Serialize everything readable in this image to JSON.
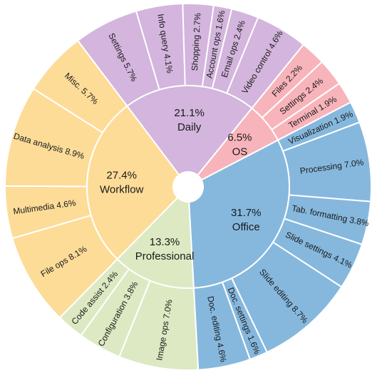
{
  "chart_data": {
    "type": "sunburst",
    "title": "",
    "categories": [
      {
        "name": "Office",
        "value": 31.7,
        "value_label": "31.7%",
        "color": "#86B8DE",
        "children": [
          {
            "name": "Visualization",
            "value": 1.9,
            "label": "Visualization 1.9%"
          },
          {
            "name": "Processing",
            "value": 7.0,
            "label": "Processing 7.0%"
          },
          {
            "name": "Tab. formatting",
            "value": 3.8,
            "label": "Tab. formatting 3.8%"
          },
          {
            "name": "Slide settings",
            "value": 4.1,
            "label": "Slide settings 4.1%"
          },
          {
            "name": "Slide editing",
            "value": 8.7,
            "label": "Slide editing 8.7%"
          },
          {
            "name": "Doc. settings",
            "value": 1.6,
            "label": "Doc. settings 1.6%"
          },
          {
            "name": "Doc. editing",
            "value": 4.6,
            "label": "Doc. editing 4.6%"
          }
        ]
      },
      {
        "name": "Professional",
        "value": 13.3,
        "value_label": "13.3%",
        "color": "#DDE9C2",
        "children": [
          {
            "name": "Image ops",
            "value": 7.0,
            "label": "Image ops 7.0%"
          },
          {
            "name": "Configuration",
            "value": 3.8,
            "label": "Configuration 3.8%"
          },
          {
            "name": "Code assist",
            "value": 2.4,
            "label": "Code assist 2.4%"
          }
        ]
      },
      {
        "name": "Workflow",
        "value": 27.4,
        "value_label": "27.4%",
        "color": "#FDDC98",
        "children": [
          {
            "name": "File ops",
            "value": 8.1,
            "label": "File ops 8.1%"
          },
          {
            "name": "Multimedia",
            "value": 4.6,
            "label": "Multimedia 4.6%"
          },
          {
            "name": "Data analysis",
            "value": 8.9,
            "label": "Data analysis 8.9%"
          },
          {
            "name": "Misc.",
            "value": 5.7,
            "label": "Misc. 5.7%"
          }
        ]
      },
      {
        "name": "Daily",
        "value": 21.1,
        "value_label": "21.1%",
        "color": "#D3B5DD",
        "children": [
          {
            "name": "Settings",
            "value": 5.7,
            "label": "Settings 5.7%"
          },
          {
            "name": "Info query",
            "value": 4.1,
            "label": "Info query 4.1%"
          },
          {
            "name": "Shopping",
            "value": 2.7,
            "label": "Shopping 2.7%"
          },
          {
            "name": "Account ops",
            "value": 1.6,
            "label": "Account ops 1.6%"
          },
          {
            "name": "Email ops",
            "value": 2.4,
            "label": "Email ops 2.4%"
          },
          {
            "name": "Video control",
            "value": 4.6,
            "label": "Video control 4.6%"
          }
        ]
      },
      {
        "name": "OS",
        "value": 6.5,
        "value_label": "6.5%",
        "color": "#F8B4BB",
        "children": [
          {
            "name": "Files",
            "value": 2.2,
            "label": "Files 2.2%"
          },
          {
            "name": "Settings",
            "value": 2.4,
            "label": "Settings 2.4%"
          },
          {
            "name": "Terminal",
            "value": 1.9,
            "label": "Terminal 1.9%"
          }
        ]
      }
    ]
  }
}
